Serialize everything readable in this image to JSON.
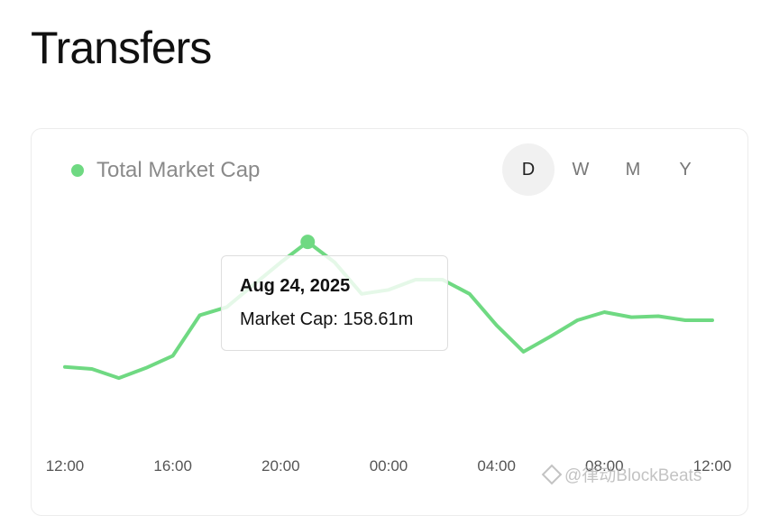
{
  "page": {
    "title": "Transfers"
  },
  "legend": {
    "label": "Total Market Cap",
    "color": "#6fd982"
  },
  "range_tabs": [
    {
      "label": "D",
      "active": true
    },
    {
      "label": "W",
      "active": false
    },
    {
      "label": "M",
      "active": false
    },
    {
      "label": "Y",
      "active": false
    }
  ],
  "tooltip": {
    "date": "Aug 24, 2025",
    "value": "Market Cap: 158.61m"
  },
  "watermark": {
    "text": "@律动BlockBeats"
  },
  "chart_data": {
    "type": "line",
    "x": [
      "12:00",
      "13:00",
      "14:00",
      "15:00",
      "16:00",
      "17:00",
      "18:00",
      "19:00",
      "20:00",
      "21:00",
      "22:00",
      "23:00",
      "00:00",
      "01:00",
      "02:00",
      "03:00",
      "04:00",
      "05:00",
      "06:00",
      "07:00",
      "08:00",
      "09:00",
      "10:00",
      "11:00",
      "12:00"
    ],
    "tick_labels": [
      "12:00",
      "16:00",
      "20:00",
      "00:00",
      "04:00",
      "08:00",
      "12:00"
    ],
    "series": [
      {
        "name": "Total Market Cap",
        "color": "#6fd982",
        "values": [
          97.0,
          96.0,
          91.5,
          96.5,
          102.5,
          122.5,
          126.5,
          137.5,
          148.5,
          158.6,
          148.5,
          133.0,
          135.0,
          140.0,
          140.0,
          133.0,
          117.5,
          104.5,
          112.0,
          120.0,
          124.0,
          121.5,
          122.0,
          120.0,
          120.0
        ],
        "highlight_index": 9
      }
    ],
    "ylim": [
      60,
      180
    ]
  }
}
